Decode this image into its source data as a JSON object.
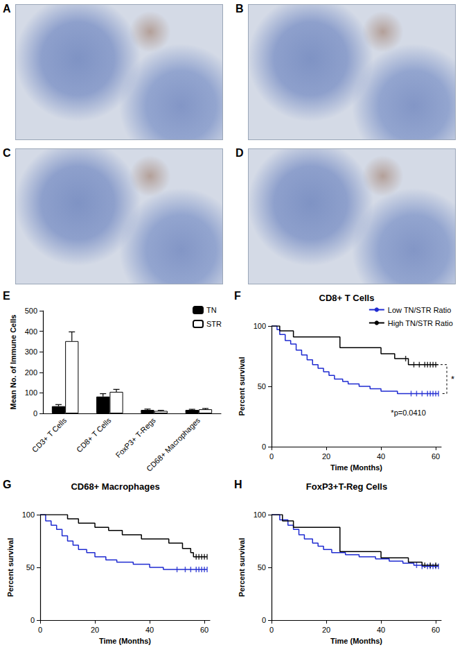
{
  "image_panels": [
    "A",
    "B",
    "C",
    "D"
  ],
  "chart_data": [
    {
      "type": "bar",
      "panel": "E",
      "categories": [
        "CD3+ T Cells",
        "CD8+ T Cells",
        "FoxP3+ T-Regs",
        "CD68+ Macrophages"
      ],
      "series": [
        {
          "name": "TN",
          "color": "#000000",
          "values": [
            35,
            82,
            17,
            17
          ],
          "errors": [
            8,
            14,
            4,
            3
          ]
        },
        {
          "name": "STR",
          "color": "#ffffff",
          "values": [
            352,
            105,
            12,
            20
          ],
          "errors": [
            45,
            12,
            3,
            4
          ]
        }
      ],
      "y_label": "Mean No. of Immune Cells",
      "ylim": [
        0,
        500
      ],
      "yticks": [
        0,
        100,
        200,
        300,
        400,
        500
      ],
      "legend": "top-right",
      "grid": false
    },
    {
      "type": "line",
      "panel": "F",
      "title": "CD8+ T Cells",
      "x_label": "Time (Months)",
      "y_label": "Percent survival",
      "xlim": [
        0,
        62
      ],
      "xticks": [
        0,
        20,
        40,
        60
      ],
      "ylim": [
        0,
        100
      ],
      "yticks": [
        0,
        50,
        100
      ],
      "line_style": "step",
      "legend": "top-right",
      "grid": false,
      "annotations": [
        "*",
        "*p=0.0410"
      ],
      "series": [
        {
          "name": "Low TN/STR Ratio",
          "color": "#1f2bd1",
          "x": [
            0,
            2,
            3,
            5,
            7,
            9,
            11,
            13,
            15,
            17,
            19,
            21,
            23,
            26,
            28,
            32,
            36,
            40,
            46,
            61
          ],
          "values": [
            100,
            97,
            93,
            88,
            85,
            80,
            76,
            72,
            68,
            65,
            62,
            59,
            56,
            54,
            52,
            50,
            48,
            46,
            44,
            44
          ],
          "censored": [
            51,
            53,
            55,
            57,
            58,
            59,
            60,
            61
          ]
        },
        {
          "name": "High TN/STR Ratio",
          "color": "#000000",
          "x": [
            0,
            3,
            8,
            25,
            40,
            45,
            50,
            61
          ],
          "values": [
            100,
            96,
            91,
            82,
            77,
            73,
            68,
            68
          ],
          "censored": [
            49,
            52,
            54,
            56,
            57,
            58,
            59,
            60
          ]
        }
      ]
    },
    {
      "type": "line",
      "panel": "G",
      "title": "CD68+ Macrophages",
      "x_label": "Time (Months)",
      "y_label": "Percent survival",
      "xlim": [
        0,
        62
      ],
      "xticks": [
        0,
        20,
        40,
        60
      ],
      "ylim": [
        0,
        100
      ],
      "yticks": [
        0,
        50,
        100
      ],
      "line_style": "step",
      "grid": false,
      "series": [
        {
          "color": "#1f2bd1",
          "x": [
            0,
            2,
            4,
            6,
            8,
            10,
            12,
            14,
            17,
            20,
            24,
            28,
            34,
            40,
            45,
            61
          ],
          "values": [
            100,
            94,
            90,
            86,
            80,
            75,
            71,
            67,
            64,
            60,
            57,
            55,
            53,
            50,
            48,
            48
          ],
          "censored": [
            50,
            53,
            55,
            57,
            58,
            59,
            60,
            61
          ]
        },
        {
          "color": "#000000",
          "x": [
            0,
            10,
            14,
            20,
            25,
            30,
            37,
            47,
            52,
            55,
            56,
            61
          ],
          "values": [
            100,
            96,
            92,
            88,
            85,
            81,
            77,
            73,
            68,
            64,
            60,
            60
          ],
          "censored": [
            57,
            58,
            59,
            60,
            61
          ]
        }
      ]
    },
    {
      "type": "line",
      "panel": "H",
      "title": "FoxP3+T-Reg Cells",
      "x_label": "Time (Months)",
      "y_label": "Percent survival",
      "xlim": [
        0,
        62
      ],
      "xticks": [
        0,
        20,
        40,
        60
      ],
      "ylim": [
        0,
        100
      ],
      "yticks": [
        0,
        50,
        100
      ],
      "line_style": "step",
      "grid": false,
      "series": [
        {
          "color": "#1f2bd1",
          "x": [
            0,
            3,
            6,
            8,
            10,
            12,
            15,
            17,
            19,
            22,
            27,
            32,
            38,
            43,
            48,
            52,
            55,
            61
          ],
          "values": [
            100,
            95,
            90,
            86,
            81,
            77,
            73,
            70,
            67,
            64,
            62,
            60,
            58,
            56,
            54,
            52,
            51,
            51
          ],
          "censored": [
            53,
            55,
            57,
            58,
            59,
            60,
            61
          ]
        },
        {
          "color": "#000000",
          "x": [
            0,
            4,
            8,
            25,
            40,
            50,
            55,
            61
          ],
          "values": [
            100,
            94,
            88,
            65,
            59,
            55,
            52,
            52
          ],
          "censored": [
            56,
            58,
            60
          ]
        }
      ]
    }
  ]
}
